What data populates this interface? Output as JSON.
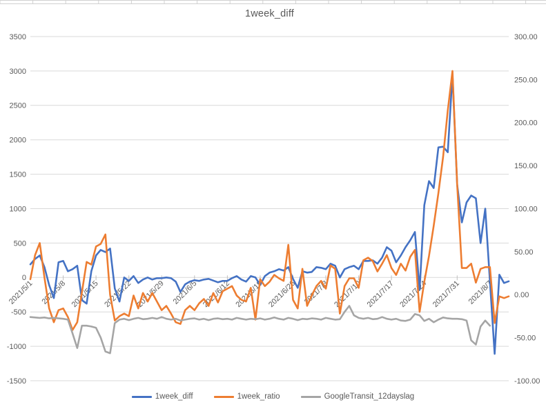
{
  "title": "1week_diff",
  "colors": {
    "series_blue": "#4472C4",
    "series_orange": "#ED7D31",
    "series_gray": "#A5A5A5",
    "gridline": "#D9D9D9",
    "tick_mark": "#BFBFBF",
    "axis_text": "#595959",
    "sheet_border": "#D0D0D0",
    "background": "#FFFFFF"
  },
  "legend": {
    "items": [
      {
        "label": "1week_diff",
        "color": "#4472C4"
      },
      {
        "label": "1week_ratio",
        "color": "#ED7D31"
      },
      {
        "label": "GoogleTransit_12dayslag",
        "color": "#A5A5A5"
      }
    ]
  },
  "chart_data": {
    "type": "line",
    "title": "1week_diff",
    "grid": true,
    "legend_position": "bottom",
    "left_axis": {
      "min": -1500,
      "max": 3500,
      "step": 500,
      "tick_labels": [
        "3500",
        "3000",
        "2500",
        "2000",
        "1500",
        "1000",
        "500",
        "0",
        "-500",
        "-1000",
        "-1500"
      ]
    },
    "right_axis": {
      "min": -100,
      "max": 300,
      "step": 50,
      "tick_labels": [
        "300.00",
        "250.00",
        "200.00",
        "150.00",
        "100.00",
        "50.00",
        "0.00",
        "-50.00",
        "-100.00"
      ]
    },
    "x_tick_every": 7,
    "x_tick_labels": [
      "2021/5/1",
      "2021/5/8",
      "2021/5/15",
      "2021/5/22",
      "2021/5/29",
      "2021/6/5",
      "2021/6/12",
      "2021/6/19",
      "2021/6/26",
      "2021/7/3",
      "2021/7/10",
      "2021/7/17",
      "2021/7/24",
      "2021/7/31",
      "2021/8/7"
    ],
    "x": [
      "2021/5/1",
      "2021/5/2",
      "2021/5/3",
      "2021/5/4",
      "2021/5/5",
      "2021/5/6",
      "2021/5/7",
      "2021/5/8",
      "2021/5/9",
      "2021/5/10",
      "2021/5/11",
      "2021/5/12",
      "2021/5/13",
      "2021/5/14",
      "2021/5/15",
      "2021/5/16",
      "2021/5/17",
      "2021/5/18",
      "2021/5/19",
      "2021/5/20",
      "2021/5/21",
      "2021/5/22",
      "2021/5/23",
      "2021/5/24",
      "2021/5/25",
      "2021/5/26",
      "2021/5/27",
      "2021/5/28",
      "2021/5/29",
      "2021/5/30",
      "2021/5/31",
      "2021/6/1",
      "2021/6/2",
      "2021/6/3",
      "2021/6/4",
      "2021/6/5",
      "2021/6/6",
      "2021/6/7",
      "2021/6/8",
      "2021/6/9",
      "2021/6/10",
      "2021/6/11",
      "2021/6/12",
      "2021/6/13",
      "2021/6/14",
      "2021/6/15",
      "2021/6/16",
      "2021/6/17",
      "2021/6/18",
      "2021/6/19",
      "2021/6/20",
      "2021/6/21",
      "2021/6/22",
      "2021/6/23",
      "2021/6/24",
      "2021/6/25",
      "2021/6/26",
      "2021/6/27",
      "2021/6/28",
      "2021/6/29",
      "2021/6/30",
      "2021/7/1",
      "2021/7/2",
      "2021/7/3",
      "2021/7/4",
      "2021/7/5",
      "2021/7/6",
      "2021/7/7",
      "2021/7/8",
      "2021/7/9",
      "2021/7/10",
      "2021/7/11",
      "2021/7/12",
      "2021/7/13",
      "2021/7/14",
      "2021/7/15",
      "2021/7/16",
      "2021/7/17",
      "2021/7/18",
      "2021/7/19",
      "2021/7/20",
      "2021/7/21",
      "2021/7/22",
      "2021/7/23",
      "2021/7/24",
      "2021/7/25",
      "2021/7/26",
      "2021/7/27",
      "2021/7/28",
      "2021/7/29",
      "2021/7/30",
      "2021/7/31",
      "2021/8/1",
      "2021/8/2",
      "2021/8/3",
      "2021/8/4",
      "2021/8/5",
      "2021/8/6",
      "2021/8/7",
      "2021/8/8",
      "2021/8/9",
      "2021/8/10",
      "2021/8/11"
    ],
    "series": [
      {
        "name": "1week_diff",
        "axis": "left",
        "color": "#4472C4",
        "values": [
          190,
          270,
          320,
          150,
          -110,
          -300,
          220,
          240,
          90,
          120,
          170,
          -330,
          -380,
          90,
          320,
          400,
          370,
          420,
          -160,
          -350,
          0,
          -50,
          20,
          -80,
          -30,
          0,
          -30,
          -10,
          -10,
          0,
          -10,
          -60,
          -210,
          -100,
          -60,
          -40,
          -50,
          -30,
          -20,
          -45,
          -70,
          -50,
          -50,
          -10,
          20,
          -30,
          -60,
          20,
          0,
          -110,
          20,
          70,
          90,
          120,
          100,
          150,
          -20,
          -150,
          90,
          70,
          80,
          150,
          140,
          120,
          200,
          170,
          0,
          120,
          150,
          170,
          120,
          240,
          240,
          250,
          200,
          290,
          440,
          390,
          220,
          320,
          440,
          540,
          660,
          -180,
          1050,
          1400,
          1300,
          1890,
          1900,
          1820,
          2950,
          1350,
          800,
          1090,
          1190,
          1150,
          500,
          1000,
          -60,
          -1110,
          40,
          -80,
          -55
        ]
      },
      {
        "name": "1week_ratio",
        "axis": "right",
        "color": "#ED7D31",
        "values": [
          18,
          46,
          60,
          20,
          -16,
          -32,
          -18,
          -16,
          -26,
          -41,
          -32,
          3,
          38,
          35,
          56,
          59,
          70,
          0,
          -30,
          -25,
          -22,
          -25,
          -1,
          -16,
          2,
          -8,
          2,
          -8,
          -18,
          -13,
          -22,
          -32,
          -34,
          -18,
          -13,
          -18,
          -10,
          -5,
          -13,
          2,
          -9,
          4,
          7,
          10,
          -1,
          -6,
          -8,
          8,
          -29,
          18,
          10,
          15,
          23,
          19,
          16,
          58,
          -6,
          -16,
          30,
          -13,
          -1,
          10,
          16,
          7,
          34,
          30,
          -22,
          10,
          19,
          19,
          8,
          40,
          43,
          39,
          27,
          36,
          46,
          31,
          23,
          36,
          28,
          44,
          52,
          -20,
          15,
          45,
          80,
          118,
          160,
          214,
          260,
          128,
          31,
          31,
          36,
          14,
          30,
          32,
          32,
          -33,
          -2,
          -4,
          -2
        ]
      },
      {
        "name": "GoogleTransit_12dayslag",
        "axis": "right",
        "color": "#A5A5A5",
        "values": [
          -26,
          -26.5,
          -27,
          -26.5,
          -27.5,
          -27,
          -27.5,
          -28,
          -29,
          -45,
          -62,
          -36,
          -36,
          -37,
          -38.5,
          -50,
          -66,
          -68,
          -33,
          -29,
          -28,
          -29.5,
          -28,
          -27,
          -28.5,
          -28,
          -27,
          -28,
          -26,
          -28,
          -29,
          -28,
          -30,
          -29,
          -28,
          -27.5,
          -29,
          -28,
          -29.5,
          -28,
          -27.5,
          -28.5,
          -28,
          -29,
          -27,
          -28,
          -29,
          -28,
          -28.5,
          -27.5,
          -29,
          -28,
          -26.5,
          -28,
          -29,
          -27,
          -28,
          -29.5,
          -28,
          -28.5,
          -27.5,
          -28,
          -29,
          -27,
          -28,
          -29,
          -28.5,
          -20,
          -13,
          -24,
          -27,
          -28,
          -27,
          -28.5,
          -28,
          -26,
          -28,
          -29,
          -28,
          -30,
          -30.5,
          -29,
          -22.5,
          -24,
          -30.5,
          -28,
          -32,
          -29,
          -26.5,
          -27.5,
          -28,
          -28,
          -28.5,
          -30,
          -53,
          -58,
          -37,
          -30,
          -36,
          null,
          null,
          null,
          null
        ]
      }
    ]
  }
}
